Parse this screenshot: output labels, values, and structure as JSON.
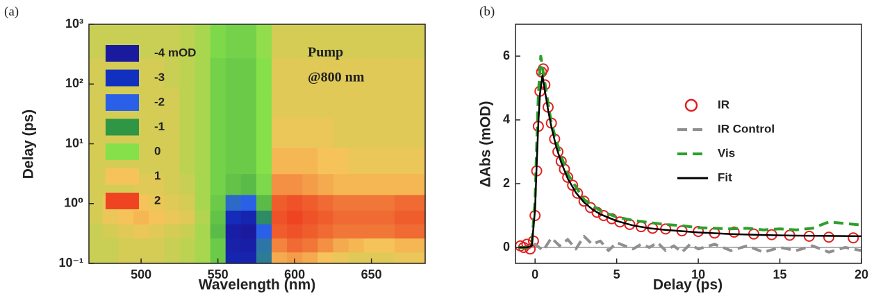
{
  "chart_data": [
    {
      "type": "heatmap",
      "panel_label": "(a)",
      "x_label": "Wavelength (nm)",
      "y_label": "Delay (ps)",
      "xlim": [
        466,
        685
      ],
      "xticks": [
        500,
        550,
        600,
        650
      ],
      "ylim": [
        0.1,
        1000
      ],
      "log_y": true,
      "yticks": [
        {
          "value": 0.1,
          "label": "10⁻¹"
        },
        {
          "value": 1,
          "label": "10⁰"
        },
        {
          "value": 10,
          "label": "10¹"
        },
        {
          "value": 100,
          "label": "10²"
        },
        {
          "value": 1000,
          "label": "10³"
        }
      ],
      "colorbar": {
        "ticks": [
          {
            "value": -4,
            "label": "-4 mOD"
          },
          -3,
          -2,
          -1,
          0,
          1,
          2
        ],
        "colors": [
          "#1a1a9e",
          "#1230c0",
          "#2a5fe8",
          "#2e9645",
          "#86e04a",
          "#f6c35a",
          "#ee4422"
        ]
      },
      "annotations": [
        "Pump",
        "@800 nm"
      ],
      "x": [
        470,
        480,
        490,
        500,
        510,
        520,
        530,
        540,
        550,
        560,
        570,
        580,
        590,
        600,
        610,
        620,
        630,
        640,
        650,
        660,
        670,
        680
      ],
      "y": [
        0.12,
        0.2,
        0.35,
        0.6,
        1,
        2,
        5,
        15,
        50,
        150,
        500
      ],
      "z": [
        [
          0.6,
          0.6,
          0.7,
          0.7,
          0.7,
          0.6,
          0.5,
          0.3,
          -0.3,
          -3.5,
          -3.6,
          -1.5,
          1.2,
          1.3,
          1.2,
          1.0,
          0.9,
          0.8,
          0.8,
          0.8,
          0.9,
          0.9
        ],
        [
          0.6,
          0.6,
          0.7,
          0.7,
          0.7,
          0.6,
          0.5,
          0.3,
          -0.3,
          -3.7,
          -3.8,
          -1.6,
          1.5,
          1.7,
          1.6,
          1.4,
          1.2,
          1.1,
          1.0,
          1.0,
          1.1,
          1.1
        ],
        [
          0.6,
          0.7,
          0.8,
          0.9,
          0.8,
          0.7,
          0.6,
          0.3,
          -0.5,
          -3.8,
          -4.0,
          -2.0,
          1.8,
          1.9,
          1.8,
          1.7,
          1.6,
          1.6,
          1.6,
          1.6,
          1.7,
          1.7
        ],
        [
          0.7,
          0.9,
          1.0,
          1.1,
          1.0,
          0.9,
          0.8,
          0.4,
          -0.4,
          -3.2,
          -3.5,
          -1.2,
          1.9,
          2.0,
          1.9,
          1.8,
          1.7,
          1.7,
          1.7,
          1.7,
          1.8,
          1.8
        ],
        [
          0.7,
          0.9,
          1.0,
          1.0,
          0.9,
          0.8,
          0.7,
          0.3,
          -0.3,
          -1.8,
          -2.0,
          -0.5,
          1.8,
          1.9,
          1.8,
          1.7,
          1.6,
          1.6,
          1.6,
          1.6,
          1.7,
          1.7
        ],
        [
          0.7,
          0.7,
          0.7,
          0.8,
          0.8,
          0.7,
          0.6,
          0.3,
          -0.2,
          -0.4,
          -0.5,
          -0.1,
          1.4,
          1.4,
          1.3,
          1.2,
          1.1,
          1.1,
          1.1,
          1.1,
          1.1,
          1.1
        ],
        [
          0.7,
          0.7,
          0.7,
          0.7,
          0.7,
          0.7,
          0.5,
          0.3,
          -0.2,
          -0.3,
          -0.3,
          0,
          1.1,
          1.1,
          1.1,
          1.0,
          1.0,
          0.9,
          0.9,
          0.9,
          0.9,
          0.9
        ],
        [
          0.7,
          0.7,
          0.7,
          0.7,
          0.7,
          0.7,
          0.5,
          0.3,
          -0.2,
          -0.3,
          -0.3,
          0,
          0.9,
          0.9,
          0.9,
          0.9,
          0.8,
          0.8,
          0.8,
          0.8,
          0.8,
          0.8
        ],
        [
          0.7,
          0.7,
          0.7,
          0.7,
          0.7,
          0.7,
          0.5,
          0.3,
          -0.2,
          -0.3,
          -0.3,
          0,
          0.8,
          0.8,
          0.8,
          0.8,
          0.8,
          0.8,
          0.8,
          0.8,
          0.8,
          0.8
        ],
        [
          0.7,
          0.7,
          0.7,
          0.7,
          0.7,
          0.6,
          0.5,
          0.3,
          -0.2,
          -0.3,
          -0.3,
          0,
          0.8,
          0.8,
          0.8,
          0.8,
          0.8,
          0.8,
          0.8,
          0.8,
          0.8,
          0.8
        ],
        [
          0.6,
          0.6,
          0.6,
          0.6,
          0.6,
          0.6,
          0.5,
          0.3,
          -0.1,
          -0.2,
          -0.2,
          0.1,
          0.7,
          0.7,
          0.7,
          0.7,
          0.7,
          0.7,
          0.7,
          0.7,
          0.7,
          0.7
        ]
      ]
    },
    {
      "type": "line",
      "panel_label": "(b)",
      "x_label": "Delay (ps)",
      "y_label": "ΔAbs (mOD)",
      "xlim": [
        -1.2,
        20
      ],
      "xticks": [
        0,
        5,
        10,
        15,
        20
      ],
      "ylim": [
        -0.5,
        7
      ],
      "yticks": [
        0,
        2,
        4,
        6
      ],
      "legend": "upper right",
      "series": [
        {
          "name": "IR",
          "color": "#e02020",
          "style": "markers",
          "x": [
            -0.9,
            -0.7,
            -0.5,
            -0.3,
            -0.1,
            0,
            0.1,
            0.2,
            0.3,
            0.4,
            0.5,
            0.6,
            0.8,
            1.0,
            1.2,
            1.4,
            1.6,
            1.8,
            2.0,
            2.3,
            2.6,
            3.0,
            3.4,
            3.8,
            4.2,
            4.7,
            5.2,
            5.8,
            6.5,
            7.2,
            8,
            9,
            10,
            11,
            12.2,
            13.4,
            14.5,
            15.6,
            16.8,
            18,
            19.5
          ],
          "values": [
            0.05,
            0,
            0.1,
            -0.05,
            0.2,
            1.0,
            2.4,
            3.8,
            4.9,
            5.5,
            5.6,
            5.1,
            4.4,
            3.9,
            3.4,
            3.0,
            2.7,
            2.45,
            2.2,
            1.95,
            1.7,
            1.45,
            1.25,
            1.1,
            1.0,
            0.9,
            0.8,
            0.72,
            0.65,
            0.6,
            0.58,
            0.52,
            0.5,
            0.45,
            0.48,
            0.42,
            0.4,
            0.38,
            0.35,
            0.32,
            0.3
          ]
        },
        {
          "name": "IR Control",
          "color": "#909090",
          "style": "dashed",
          "x": [
            -1,
            -0.5,
            0,
            0.5,
            1,
            1.5,
            2,
            2.5,
            3,
            3.5,
            4,
            4.5,
            5,
            5.5,
            6,
            6.5,
            7,
            7.5,
            8,
            8.5,
            9,
            9.5,
            10,
            11,
            12,
            13,
            14,
            15,
            16,
            17,
            18,
            19,
            20
          ],
          "values": [
            0,
            0,
            0.1,
            -0.1,
            0.3,
            0.05,
            0.25,
            -0.05,
            0.35,
            0.1,
            0.2,
            -0.1,
            0.15,
            0.05,
            -0.05,
            0.1,
            0,
            0.15,
            -0.1,
            0.05,
            -0.15,
            0.1,
            -0.05,
            0.1,
            -0.1,
            0.05,
            -0.15,
            0,
            -0.1,
            0.05,
            -0.15,
            0,
            -0.1
          ]
        },
        {
          "name": "Vis",
          "color": "#2ca02c",
          "style": "dashed",
          "x": [
            -1,
            -0.5,
            -0.2,
            0,
            0.1,
            0.2,
            0.35,
            0.5,
            0.8,
            1,
            1.5,
            2,
            3,
            4,
            5,
            6,
            7,
            8,
            9,
            10,
            11,
            12,
            13,
            14,
            15,
            16,
            17,
            18,
            19,
            20
          ],
          "values": [
            0,
            0,
            0.1,
            1.5,
            3.2,
            4.8,
            6.0,
            5.5,
            4.5,
            3.9,
            3.0,
            2.3,
            1.5,
            1.15,
            0.95,
            0.85,
            0.78,
            0.72,
            0.68,
            0.62,
            0.6,
            0.58,
            0.6,
            0.55,
            0.58,
            0.55,
            0.6,
            0.8,
            0.75,
            0.7
          ]
        },
        {
          "name": "Fit",
          "color": "#000000",
          "style": "solid",
          "x": [
            -1,
            -0.5,
            -0.2,
            0,
            0.1,
            0.2,
            0.3,
            0.45,
            0.6,
            0.8,
            1,
            1.3,
            1.6,
            2,
            2.5,
            3,
            3.5,
            4,
            5,
            6,
            7,
            8,
            10,
            12,
            14,
            16,
            18,
            20
          ],
          "values": [
            0,
            0,
            0.05,
            1.2,
            2.6,
            3.9,
            4.8,
            5.4,
            4.92,
            4.3,
            3.78,
            3.15,
            2.67,
            2.16,
            1.72,
            1.41,
            1.2,
            1.04,
            0.83,
            0.69,
            0.6,
            0.55,
            0.47,
            0.42,
            0.39,
            0.37,
            0.36,
            0.35
          ]
        }
      ]
    }
  ]
}
